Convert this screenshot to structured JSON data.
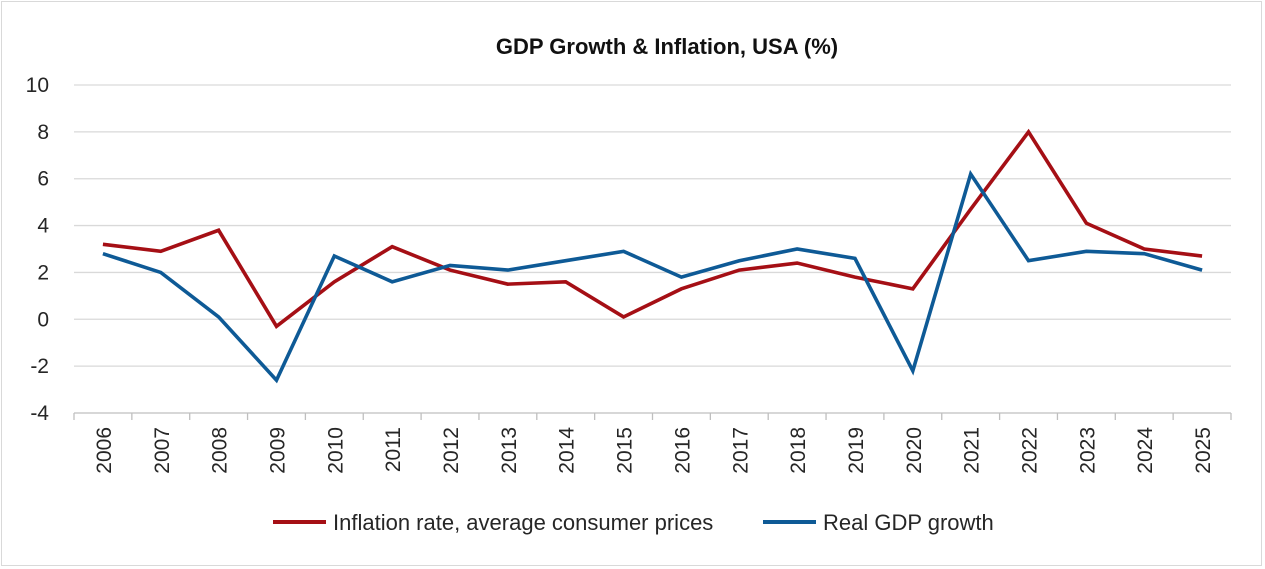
{
  "chart_data": {
    "type": "line",
    "title": "GDP Growth & Inflation, USA (%)",
    "xlabel": "",
    "ylabel": "",
    "ylim": [
      -4,
      10
    ],
    "yticks": [
      10,
      8,
      6,
      4,
      2,
      0,
      -2,
      -4
    ],
    "categories": [
      "2006",
      "2007",
      "2008",
      "2009",
      "2010",
      "2011",
      "2012",
      "2013",
      "2014",
      "2015",
      "2016",
      "2017",
      "2018",
      "2019",
      "2020",
      "2021",
      "2022",
      "2023",
      "2024",
      "2025"
    ],
    "series": [
      {
        "name": "Inflation rate, average consumer prices",
        "color": "#a50f15",
        "values": [
          3.2,
          2.9,
          3.8,
          -0.3,
          1.6,
          3.1,
          2.1,
          1.5,
          1.6,
          0.1,
          1.3,
          2.1,
          2.4,
          1.8,
          1.3,
          4.7,
          8.0,
          4.1,
          3.0,
          2.7
        ]
      },
      {
        "name": "Real GDP growth",
        "color": "#0e5a96",
        "values": [
          2.8,
          2.0,
          0.1,
          -2.6,
          2.7,
          1.6,
          2.3,
          2.1,
          2.5,
          2.9,
          1.8,
          2.5,
          3.0,
          2.6,
          -2.2,
          6.2,
          2.5,
          2.9,
          2.8,
          2.1
        ]
      }
    ],
    "grid": true,
    "legend_position": "bottom"
  }
}
